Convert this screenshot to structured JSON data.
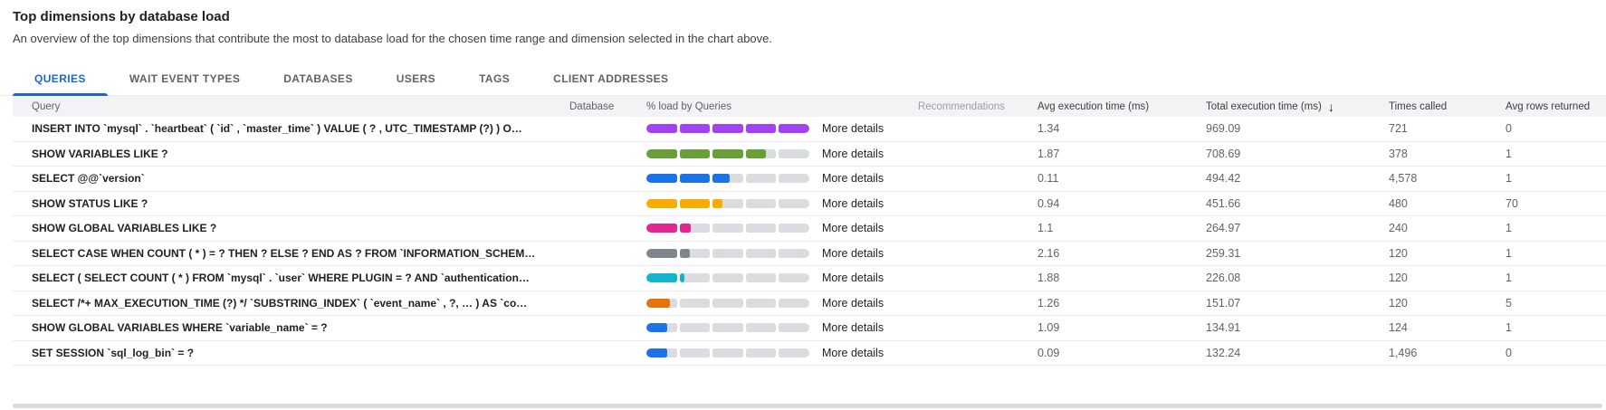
{
  "header": {
    "title": "Top dimensions by database load",
    "subtitle": "An overview of the top dimensions that contribute the most to database load for the chosen time range and dimension selected in the chart above."
  },
  "tabs": [
    {
      "id": "queries",
      "label": "QUERIES",
      "active": true
    },
    {
      "id": "wait-event-types",
      "label": "WAIT EVENT TYPES",
      "active": false
    },
    {
      "id": "databases",
      "label": "DATABASES",
      "active": false
    },
    {
      "id": "users",
      "label": "USERS",
      "active": false
    },
    {
      "id": "tags",
      "label": "TAGS",
      "active": false
    },
    {
      "id": "client-addresses",
      "label": "CLIENT ADDRESSES",
      "active": false
    }
  ],
  "table": {
    "columns": [
      "Query",
      "Database",
      "% load by Queries",
      "Recommendations",
      "Avg execution time (ms)",
      "Total execution time (ms)",
      "Times called",
      "Avg rows returned"
    ],
    "sort": {
      "column": "Total execution time (ms)",
      "direction": "desc",
      "arrow": "↓"
    },
    "more_details_label": "More details",
    "bar_track_color": "#dadce0",
    "rows": [
      {
        "query": "INSERT INTO `mysql` . `heartbeat` ( `id` , `master_time` ) VALUE ( ? , UTC_TIMESTAMP (?) ) O…",
        "database": "",
        "load_pct": 100,
        "bar_color": "#a142f4",
        "recommendation": "",
        "avg_execution_time_ms": "1.34",
        "total_execution_time_ms": "969.09",
        "times_called": "721",
        "avg_rows_returned": "0"
      },
      {
        "query": "SHOW VARIABLES LIKE ?",
        "database": "",
        "load_pct": 73.1,
        "bar_color": "#689f38",
        "recommendation": "",
        "avg_execution_time_ms": "1.87",
        "total_execution_time_ms": "708.69",
        "times_called": "378",
        "avg_rows_returned": "1"
      },
      {
        "query": "SELECT @@`version`",
        "database": "",
        "load_pct": 51.0,
        "bar_color": "#1a73e8",
        "recommendation": "",
        "avg_execution_time_ms": "0.11",
        "total_execution_time_ms": "494.42",
        "times_called": "4,578",
        "avg_rows_returned": "1"
      },
      {
        "query": "SHOW STATUS LIKE ?",
        "database": "",
        "load_pct": 46.6,
        "bar_color": "#f9ab00",
        "recommendation": "",
        "avg_execution_time_ms": "0.94",
        "total_execution_time_ms": "451.66",
        "times_called": "480",
        "avg_rows_returned": "70"
      },
      {
        "query": "SHOW GLOBAL VARIABLES LIKE ?",
        "database": "",
        "load_pct": 27.3,
        "bar_color": "#e52592",
        "recommendation": "",
        "avg_execution_time_ms": "1.1",
        "total_execution_time_ms": "264.97",
        "times_called": "240",
        "avg_rows_returned": "1"
      },
      {
        "query": "SELECT CASE WHEN COUNT ( * ) = ? THEN ? ELSE ? END AS ? FROM `INFORMATION_SCHEM…",
        "database": "",
        "load_pct": 26.8,
        "bar_color": "#80868b",
        "recommendation": "",
        "avg_execution_time_ms": "2.16",
        "total_execution_time_ms": "259.31",
        "times_called": "120",
        "avg_rows_returned": "1"
      },
      {
        "query": "SELECT ( SELECT COUNT ( * ) FROM `mysql` . `user` WHERE PLUGIN = ? AND `authentication…",
        "database": "",
        "load_pct": 23.3,
        "bar_color": "#12b5cb",
        "recommendation": "",
        "avg_execution_time_ms": "1.88",
        "total_execution_time_ms": "226.08",
        "times_called": "120",
        "avg_rows_returned": "1"
      },
      {
        "query": "SELECT /*+ MAX_EXECUTION_TIME (?) */ `SUBSTRING_INDEX` ( `event_name` , ?, … ) AS `co…",
        "database": "",
        "load_pct": 15.6,
        "bar_color": "#e8710a",
        "recommendation": "",
        "avg_execution_time_ms": "1.26",
        "total_execution_time_ms": "151.07",
        "times_called": "120",
        "avg_rows_returned": "5"
      },
      {
        "query": "SHOW GLOBAL VARIABLES WHERE `variable_name` = ?",
        "database": "",
        "load_pct": 13.9,
        "bar_color": "#1a73e8",
        "recommendation": "",
        "avg_execution_time_ms": "1.09",
        "total_execution_time_ms": "134.91",
        "times_called": "124",
        "avg_rows_returned": "1"
      },
      {
        "query": "SET SESSION `sql_log_bin` = ?",
        "database": "",
        "load_pct": 13.6,
        "bar_color": "#1a73e8",
        "recommendation": "",
        "avg_execution_time_ms": "0.09",
        "total_execution_time_ms": "132.24",
        "times_called": "1,496",
        "avg_rows_returned": "0"
      }
    ]
  }
}
